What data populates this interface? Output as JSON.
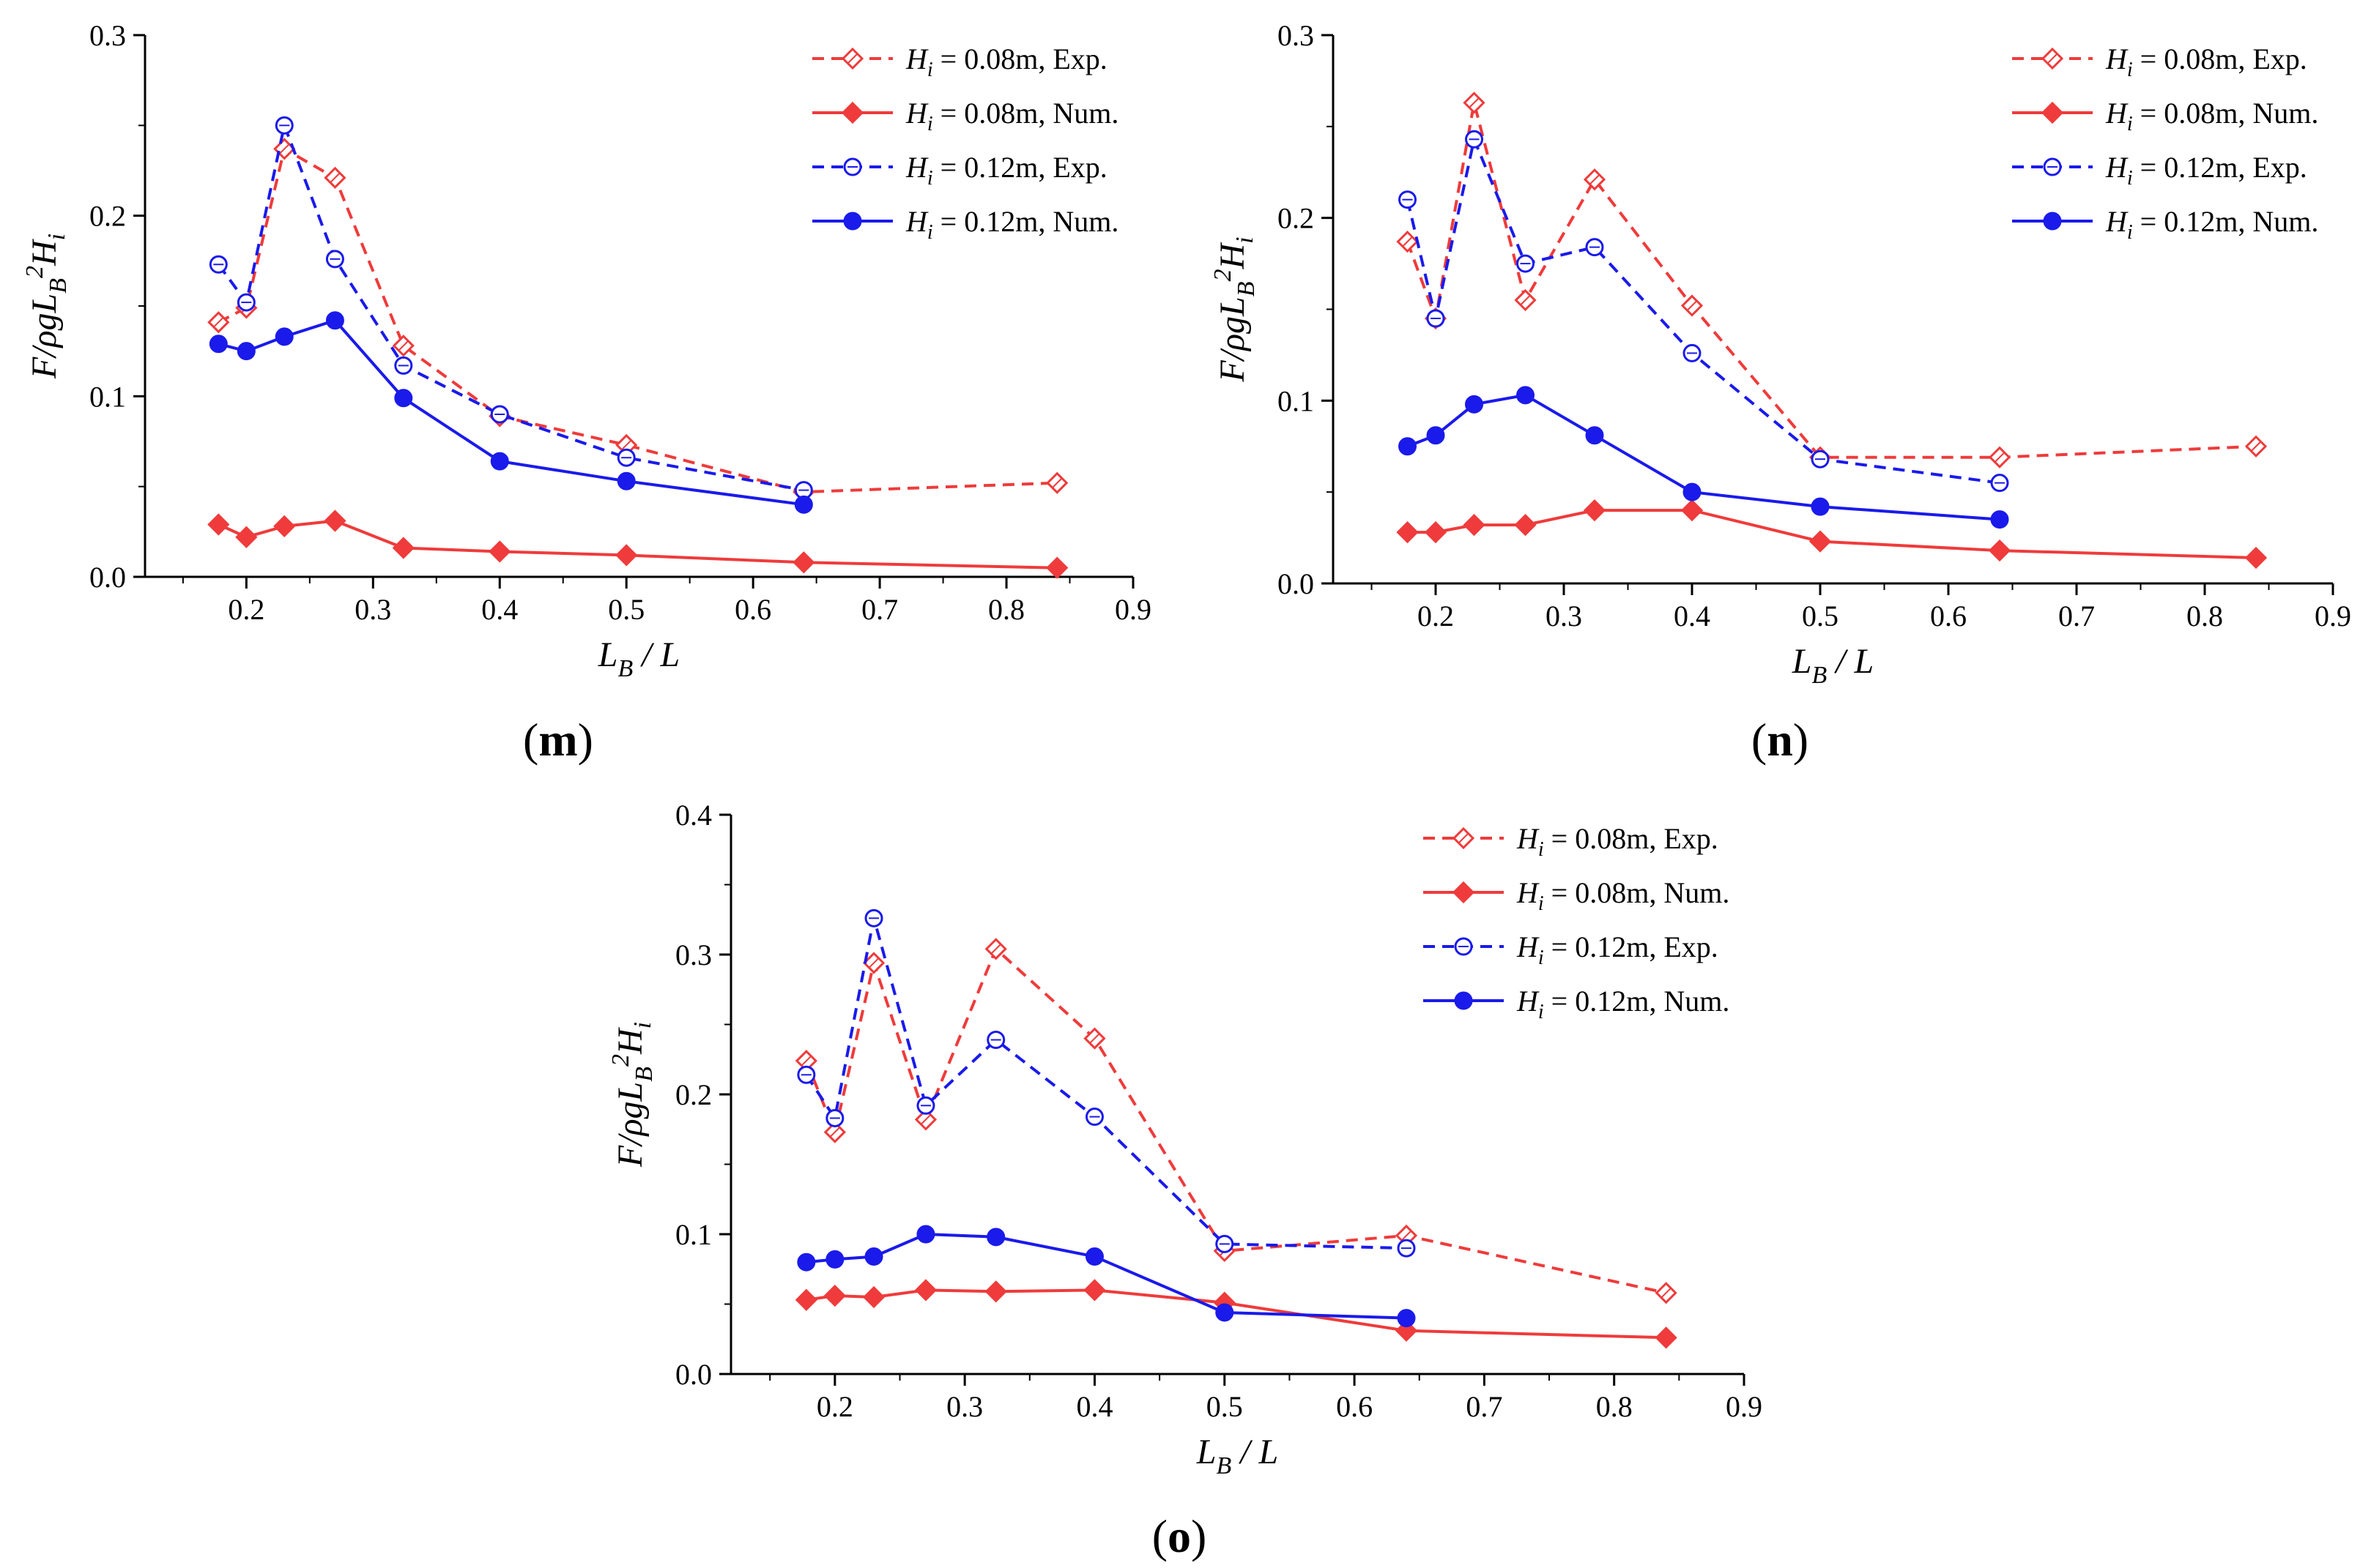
{
  "chart_data": [
    {
      "type": "line",
      "panel_label": "m",
      "xlabel": "L_B / L",
      "ylabel": "F/ρgL_B²H_i",
      "xlim": [
        0.12,
        0.9
      ],
      "ylim": [
        0,
        0.3
      ],
      "xticks": [
        "0.2",
        "0.3",
        "0.4",
        "0.5",
        "0.6",
        "0.7",
        "0.8",
        "0.9"
      ],
      "yticks": [
        "0.0",
        "0.1",
        "0.2",
        "0.3"
      ],
      "legend_position": "top-right",
      "series": [
        {
          "name": "H_i = 0.08m, Exp.",
          "legend_var": "H",
          "legend_sub": "i",
          "legend_rest": " = 0.08m, Exp.",
          "color": "#ef3b3b",
          "dash": true,
          "marker": "diamond-open",
          "x": [
            0.178,
            0.2,
            0.23,
            0.27,
            0.324,
            0.4,
            0.5,
            0.64,
            0.84
          ],
          "y": [
            0.141,
            0.149,
            0.237,
            0.221,
            0.128,
            0.089,
            0.073,
            0.047,
            0.052
          ]
        },
        {
          "name": "H_i = 0.08m, Num.",
          "legend_var": "H",
          "legend_sub": "i",
          "legend_rest": " = 0.08m, Num.",
          "color": "#ef3b3b",
          "dash": false,
          "marker": "diamond-filled",
          "x": [
            0.178,
            0.2,
            0.23,
            0.27,
            0.324,
            0.4,
            0.5,
            0.64,
            0.84
          ],
          "y": [
            0.029,
            0.022,
            0.028,
            0.031,
            0.016,
            0.014,
            0.012,
            0.008,
            0.005
          ]
        },
        {
          "name": "H_i = 0.12m, Exp.",
          "legend_var": "H",
          "legend_sub": "i",
          "legend_rest": " = 0.12m, Exp.",
          "color": "#1a1aeb",
          "dash": true,
          "marker": "circle-open",
          "x": [
            0.178,
            0.2,
            0.23,
            0.27,
            0.324,
            0.4,
            0.5,
            0.64
          ],
          "y": [
            0.173,
            0.152,
            0.25,
            0.176,
            0.117,
            0.09,
            0.066,
            0.048
          ]
        },
        {
          "name": "H_i = 0.12m, Num.",
          "legend_var": "H",
          "legend_sub": "i",
          "legend_rest": " = 0.12m, Num.",
          "color": "#1a1aeb",
          "dash": false,
          "marker": "circle-filled",
          "x": [
            0.178,
            0.2,
            0.23,
            0.27,
            0.324,
            0.4,
            0.5,
            0.64
          ],
          "y": [
            0.129,
            0.125,
            0.133,
            0.142,
            0.099,
            0.064,
            0.053,
            0.04
          ]
        }
      ]
    },
    {
      "type": "line",
      "panel_label": "n",
      "xlabel": "L_B / L",
      "ylabel": "F/ρgL_B²H_i",
      "xlim": [
        0.12,
        0.9
      ],
      "ylim": [
        0,
        0.3
      ],
      "xticks": [
        "0.2",
        "0.3",
        "0.4",
        "0.5",
        "0.6",
        "0.7",
        "0.8",
        "0.9"
      ],
      "yticks": [
        "0.0",
        "0.1",
        "0.2",
        "0.3"
      ],
      "legend_position": "top-right",
      "series": [
        {
          "name": "H_i = 0.08m, Exp.",
          "legend_var": "H",
          "legend_sub": "i",
          "legend_rest": " = 0.08m, Exp.",
          "color": "#ef3b3b",
          "dash": true,
          "marker": "diamond-open",
          "x": [
            0.178,
            0.2,
            0.23,
            0.27,
            0.324,
            0.4,
            0.5,
            0.64,
            0.84
          ],
          "y": [
            0.187,
            0.145,
            0.263,
            0.155,
            0.221,
            0.152,
            0.069,
            0.069,
            0.075
          ]
        },
        {
          "name": "H_i = 0.08m, Num.",
          "legend_var": "H",
          "legend_sub": "i",
          "legend_rest": " = 0.08m, Num.",
          "color": "#ef3b3b",
          "dash": false,
          "marker": "diamond-filled",
          "x": [
            0.178,
            0.2,
            0.23,
            0.27,
            0.324,
            0.4,
            0.5,
            0.64,
            0.84
          ],
          "y": [
            0.028,
            0.028,
            0.032,
            0.032,
            0.04,
            0.04,
            0.023,
            0.018,
            0.014
          ]
        },
        {
          "name": "H_i = 0.12m, Exp.",
          "legend_var": "H",
          "legend_sub": "i",
          "legend_rest": " = 0.12m, Exp.",
          "color": "#1a1aeb",
          "dash": true,
          "marker": "circle-open",
          "x": [
            0.178,
            0.2,
            0.23,
            0.27,
            0.324,
            0.4,
            0.5,
            0.64
          ],
          "y": [
            0.21,
            0.145,
            0.243,
            0.175,
            0.184,
            0.126,
            0.068,
            0.055
          ]
        },
        {
          "name": "H_i = 0.12m, Num.",
          "legend_var": "H",
          "legend_sub": "i",
          "legend_rest": " = 0.12m, Num.",
          "color": "#1a1aeb",
          "dash": false,
          "marker": "circle-filled",
          "x": [
            0.178,
            0.2,
            0.23,
            0.27,
            0.324,
            0.4,
            0.5,
            0.64
          ],
          "y": [
            0.075,
            0.081,
            0.098,
            0.103,
            0.081,
            0.05,
            0.042,
            0.035
          ]
        }
      ]
    },
    {
      "type": "line",
      "panel_label": "o",
      "xlabel": "L_B / L",
      "ylabel": "F/ρgL_B²H_i",
      "xlim": [
        0.12,
        0.9
      ],
      "ylim": [
        0,
        0.4
      ],
      "xticks": [
        "0.2",
        "0.3",
        "0.4",
        "0.5",
        "0.6",
        "0.7",
        "0.8",
        "0.9"
      ],
      "yticks": [
        "0.0",
        "0.1",
        "0.2",
        "0.3",
        "0.4"
      ],
      "legend_position": "top-right",
      "series": [
        {
          "name": "H_i = 0.08m, Exp.",
          "legend_var": "H",
          "legend_sub": "i",
          "legend_rest": " = 0.08m, Exp.",
          "color": "#ef3b3b",
          "dash": true,
          "marker": "diamond-open",
          "x": [
            0.178,
            0.2,
            0.23,
            0.27,
            0.324,
            0.4,
            0.5,
            0.64,
            0.84
          ],
          "y": [
            0.224,
            0.173,
            0.294,
            0.182,
            0.304,
            0.24,
            0.088,
            0.099,
            0.058
          ]
        },
        {
          "name": "H_i = 0.08m, Num.",
          "legend_var": "H",
          "legend_sub": "i",
          "legend_rest": " = 0.08m, Num.",
          "color": "#ef3b3b",
          "dash": false,
          "marker": "diamond-filled",
          "x": [
            0.178,
            0.2,
            0.23,
            0.27,
            0.324,
            0.4,
            0.5,
            0.64,
            0.84
          ],
          "y": [
            0.053,
            0.056,
            0.055,
            0.06,
            0.059,
            0.06,
            0.051,
            0.031,
            0.026
          ]
        },
        {
          "name": "H_i = 0.12m, Exp.",
          "legend_var": "H",
          "legend_sub": "i",
          "legend_rest": " = 0.12m, Exp.",
          "color": "#1a1aeb",
          "dash": true,
          "marker": "circle-open",
          "x": [
            0.178,
            0.2,
            0.23,
            0.27,
            0.324,
            0.4,
            0.5,
            0.64
          ],
          "y": [
            0.214,
            0.183,
            0.326,
            0.192,
            0.239,
            0.184,
            0.093,
            0.09
          ]
        },
        {
          "name": "H_i = 0.12m, Num.",
          "legend_var": "H",
          "legend_sub": "i",
          "legend_rest": " = 0.12m, Num.",
          "color": "#1a1aeb",
          "dash": false,
          "marker": "circle-filled",
          "x": [
            0.178,
            0.2,
            0.23,
            0.27,
            0.324,
            0.4,
            0.5,
            0.64
          ],
          "y": [
            0.08,
            0.082,
            0.084,
            0.1,
            0.098,
            0.084,
            0.044,
            0.04
          ]
        }
      ]
    }
  ]
}
